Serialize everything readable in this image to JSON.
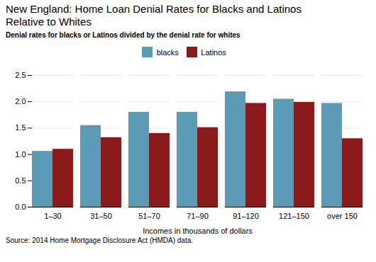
{
  "chart_data": {
    "type": "bar",
    "title": "New England: Home Loan Denial Rates for Blacks and Latinos\nRelative to Whites",
    "subtitle": "Denial rates for blacks or Latinos divided by the denial rate for whites",
    "xlabel": "Incomes in thousands of dollars",
    "source": "Source:  2014 Home Mortgage Disclosure Act (HMDA) data.",
    "categories": [
      "1–30",
      "31–50",
      "51–70",
      "71–90",
      "91–120",
      "121–150",
      "over 150"
    ],
    "series": [
      {
        "name": "blacks",
        "color": "#5B9BB5",
        "values": [
          1.06,
          1.55,
          1.8,
          1.8,
          2.19,
          2.05,
          1.97
        ]
      },
      {
        "name": "Latinos",
        "color": "#8B1A1A",
        "values": [
          1.1,
          1.32,
          1.4,
          1.51,
          1.97,
          1.99,
          1.3
        ]
      }
    ],
    "ylim": [
      0,
      2.5
    ],
    "yticks": [
      {
        "value": 0,
        "label": "0.0"
      },
      0.5,
      {
        "value": 1,
        "label": "1.0"
      },
      1.5,
      {
        "value": 2,
        "label": "2.0"
      },
      2.5
    ],
    "grid": true,
    "legend": "top"
  }
}
